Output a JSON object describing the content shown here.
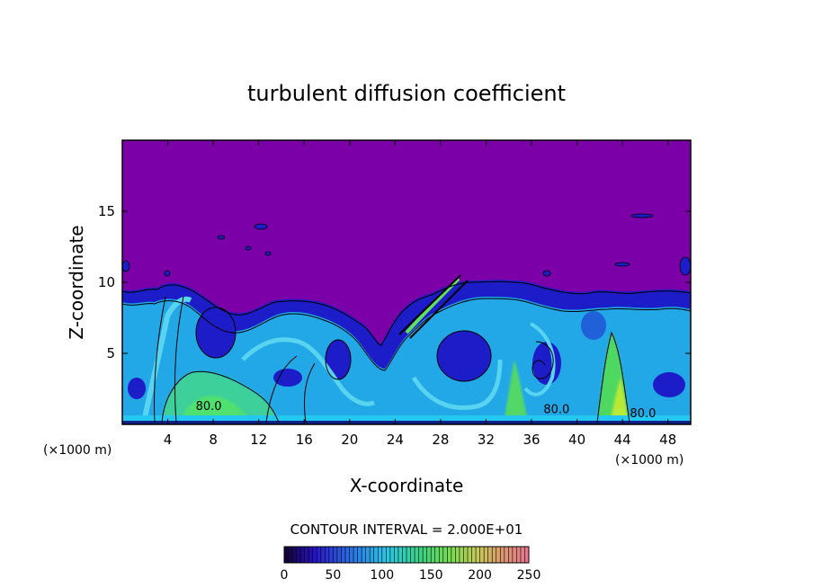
{
  "chart_data": {
    "type": "heatmap",
    "title": "turbulent diffusion coefficient",
    "xlabel": "X-coordinate",
    "ylabel": "Z-coordinate",
    "x_unit": "(×1000 m)",
    "y_unit": "(×1000 m)",
    "xlim": [
      0,
      50
    ],
    "ylim": [
      0,
      20
    ],
    "x_ticks": [
      4,
      8,
      12,
      16,
      20,
      24,
      28,
      32,
      36,
      40,
      44,
      48
    ],
    "y_ticks": [
      5,
      10,
      15
    ],
    "contour_interval_label": "CONTOUR INTERVAL = 2.000E+01",
    "colorbar": {
      "min": 0,
      "max": 250,
      "ticks": [
        0,
        50,
        100,
        150,
        200,
        250
      ]
    },
    "contour_labels": [
      {
        "text": "80.0",
        "x": 7.6,
        "z": 1.0
      },
      {
        "text": "80.0",
        "x": 38.2,
        "z": 0.8
      },
      {
        "text": "80.0",
        "x": 45.8,
        "z": 0.5
      }
    ],
    "colors": {
      "background_field": "#7b00a8",
      "low": "#1a1ad8",
      "mid": "#1fb0e8",
      "high": "#40e880"
    }
  }
}
